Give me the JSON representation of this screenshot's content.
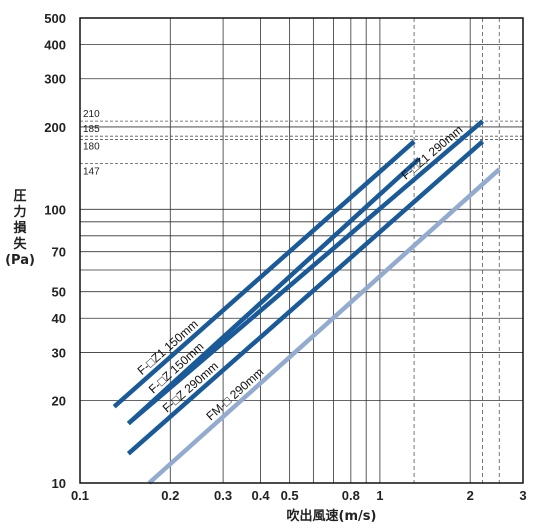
{
  "chart_data": {
    "type": "line",
    "xscale": "log",
    "yscale": "log",
    "xlim": [
      0.1,
      3
    ],
    "ylim": [
      10,
      500
    ],
    "xlabel": "吹出風速(m/s)",
    "ylabel": "圧力損失(Pa)",
    "ylabel_lines": [
      "圧",
      "力",
      "損",
      "失",
      "(Pa)"
    ],
    "grid": true,
    "x_ticks": [
      {
        "value": 0.1,
        "label": "0.1"
      },
      {
        "value": 0.2,
        "label": "0.2"
      },
      {
        "value": 0.3,
        "label": "0.3"
      },
      {
        "value": 0.4,
        "label": "0.4"
      },
      {
        "value": 0.5,
        "label": "0.5"
      },
      {
        "value": 0.8,
        "label": "0.8"
      },
      {
        "value": 1,
        "label": "1"
      },
      {
        "value": 2,
        "label": "2"
      },
      {
        "value": 3,
        "label": "3"
      }
    ],
    "y_ticks": [
      {
        "value": 10,
        "label": "10"
      },
      {
        "value": 20,
        "label": "20"
      },
      {
        "value": 30,
        "label": "30"
      },
      {
        "value": 40,
        "label": "40"
      },
      {
        "value": 50,
        "label": "50"
      },
      {
        "value": 70,
        "label": "70"
      },
      {
        "value": 100,
        "label": "100"
      },
      {
        "value": 200,
        "label": "200"
      },
      {
        "value": 300,
        "label": "300"
      },
      {
        "value": 400,
        "label": "400"
      },
      {
        "value": 500,
        "label": "500"
      }
    ],
    "x_minor_grid": [
      0.6,
      0.7,
      0.9
    ],
    "y_minor_grid": [
      60,
      80,
      90
    ],
    "reference_lines_y": [
      {
        "value": 210,
        "label": "210"
      },
      {
        "value": 185,
        "label": "185"
      },
      {
        "value": 180,
        "label": "180"
      },
      {
        "value": 147,
        "label": "147"
      }
    ],
    "reference_lines_x": [
      1.3,
      2.2,
      2.5
    ],
    "series": [
      {
        "name": "F-□Z1 150mm",
        "color": "#1a5a99",
        "x": [
          0.13,
          1.3
        ],
        "y": [
          19,
          177
        ]
      },
      {
        "name": "F-□Z 150mm",
        "color": "#1a5a99",
        "x": [
          0.145,
          1.35
        ],
        "y": [
          16.5,
          153
        ]
      },
      {
        "name": "F-□Z1 290mm",
        "color": "#1a5a99",
        "x": [
          0.145,
          2.2
        ],
        "y": [
          16.5,
          210
        ]
      },
      {
        "name": "F-□Z 290mm",
        "color": "#1a5a99",
        "x": [
          0.145,
          2.2
        ],
        "y": [
          12.8,
          177
        ]
      },
      {
        "name": "FM-□ 290mm",
        "color": "#92abcf",
        "x": [
          0.17,
          2.5
        ],
        "y": [
          10,
          140
        ]
      }
    ]
  }
}
